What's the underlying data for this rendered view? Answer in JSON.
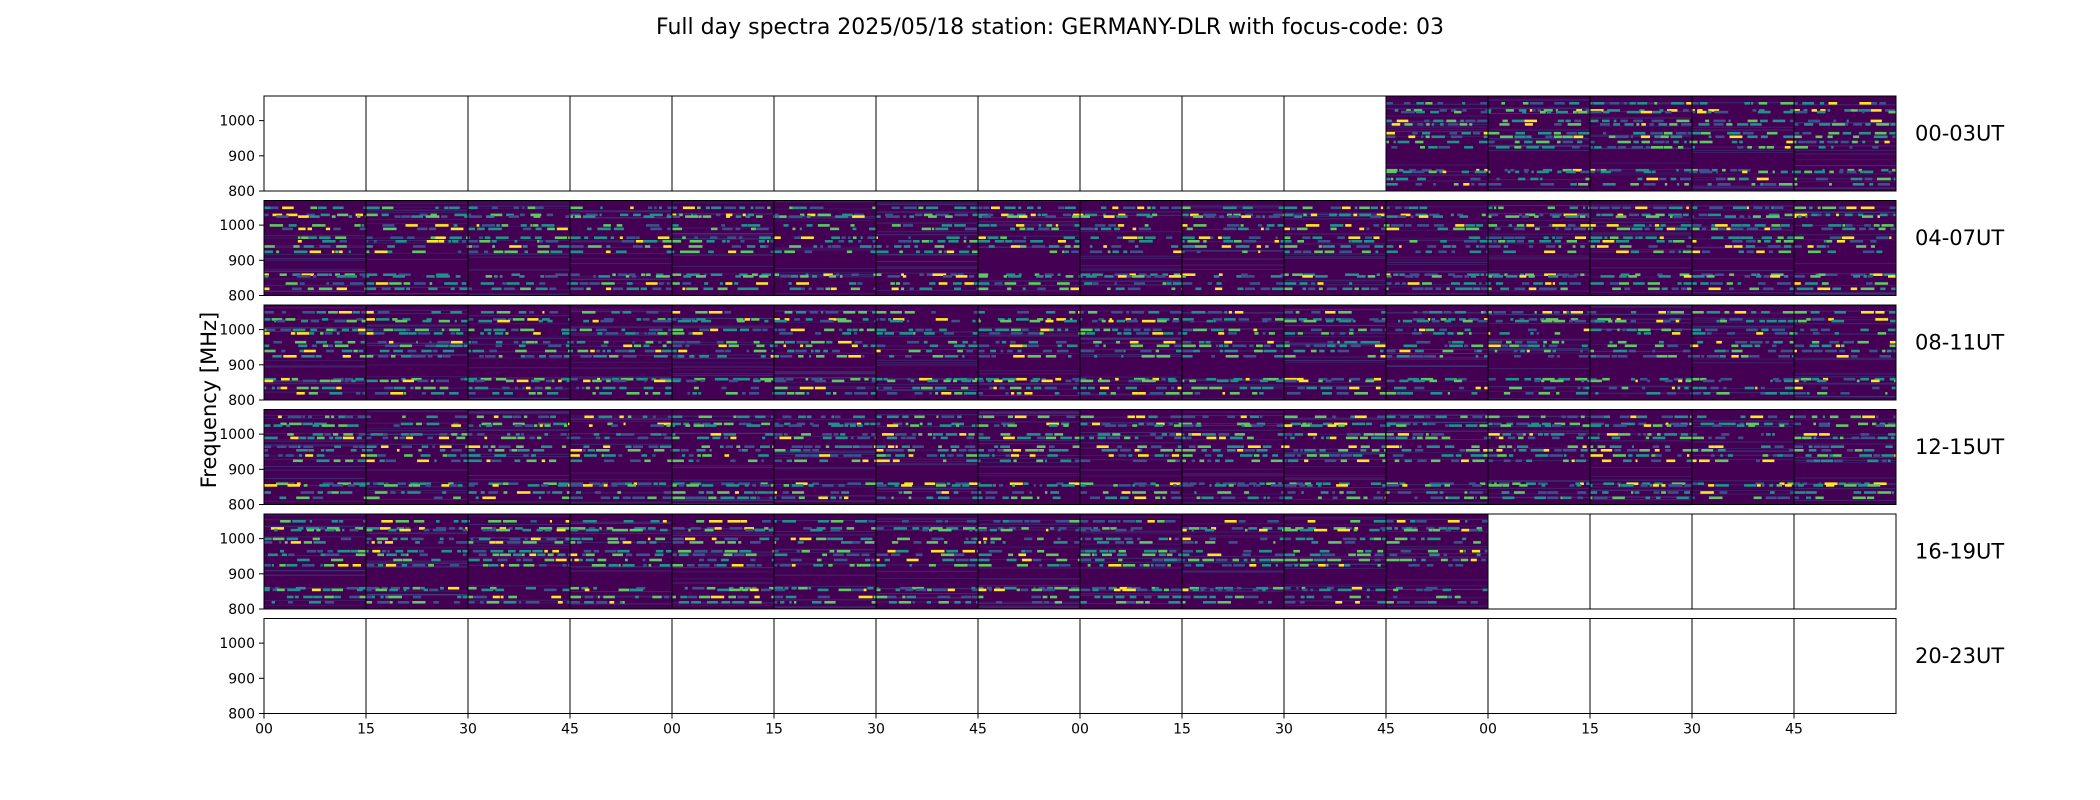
{
  "chart_data": {
    "type": "heatmap",
    "title": "Full day spectra 2025/05/18 station: GERMANY-DLR with focus-code: 03",
    "ylabel": "Frequency [MHz]",
    "xlabel": "",
    "ylim": [
      800,
      1070
    ],
    "yticks": [
      800,
      900,
      1000
    ],
    "xticks": [
      "00",
      "15",
      "30",
      "45",
      "00",
      "15",
      "30",
      "45",
      "00",
      "15",
      "30",
      "45",
      "00",
      "15",
      "30",
      "45"
    ],
    "colormap": "viridis",
    "panels_per_row": 16,
    "panel_minutes": 15,
    "rows": [
      {
        "label": "00-03UT",
        "first_panel_with_data": 11,
        "last_panel_with_data": 15
      },
      {
        "label": "04-07UT",
        "first_panel_with_data": 0,
        "last_panel_with_data": 15
      },
      {
        "label": "08-11UT",
        "first_panel_with_data": 0,
        "last_panel_with_data": 15
      },
      {
        "label": "12-15UT",
        "first_panel_with_data": 0,
        "last_panel_with_data": 15
      },
      {
        "label": "16-19UT",
        "first_panel_with_data": 0,
        "last_panel_with_data": 11
      },
      {
        "label": "20-23UT",
        "first_panel_with_data": -1,
        "last_panel_with_data": -1
      }
    ],
    "emission_bands_mhz": [
      1050,
      1030,
      1025,
      1000,
      990,
      965,
      955,
      940,
      925,
      860,
      855,
      835,
      820
    ],
    "colors": {
      "background": "#440154",
      "low": "#3b528b",
      "mid": "#21918c",
      "high": "#5ec962",
      "peak": "#fde725"
    }
  }
}
